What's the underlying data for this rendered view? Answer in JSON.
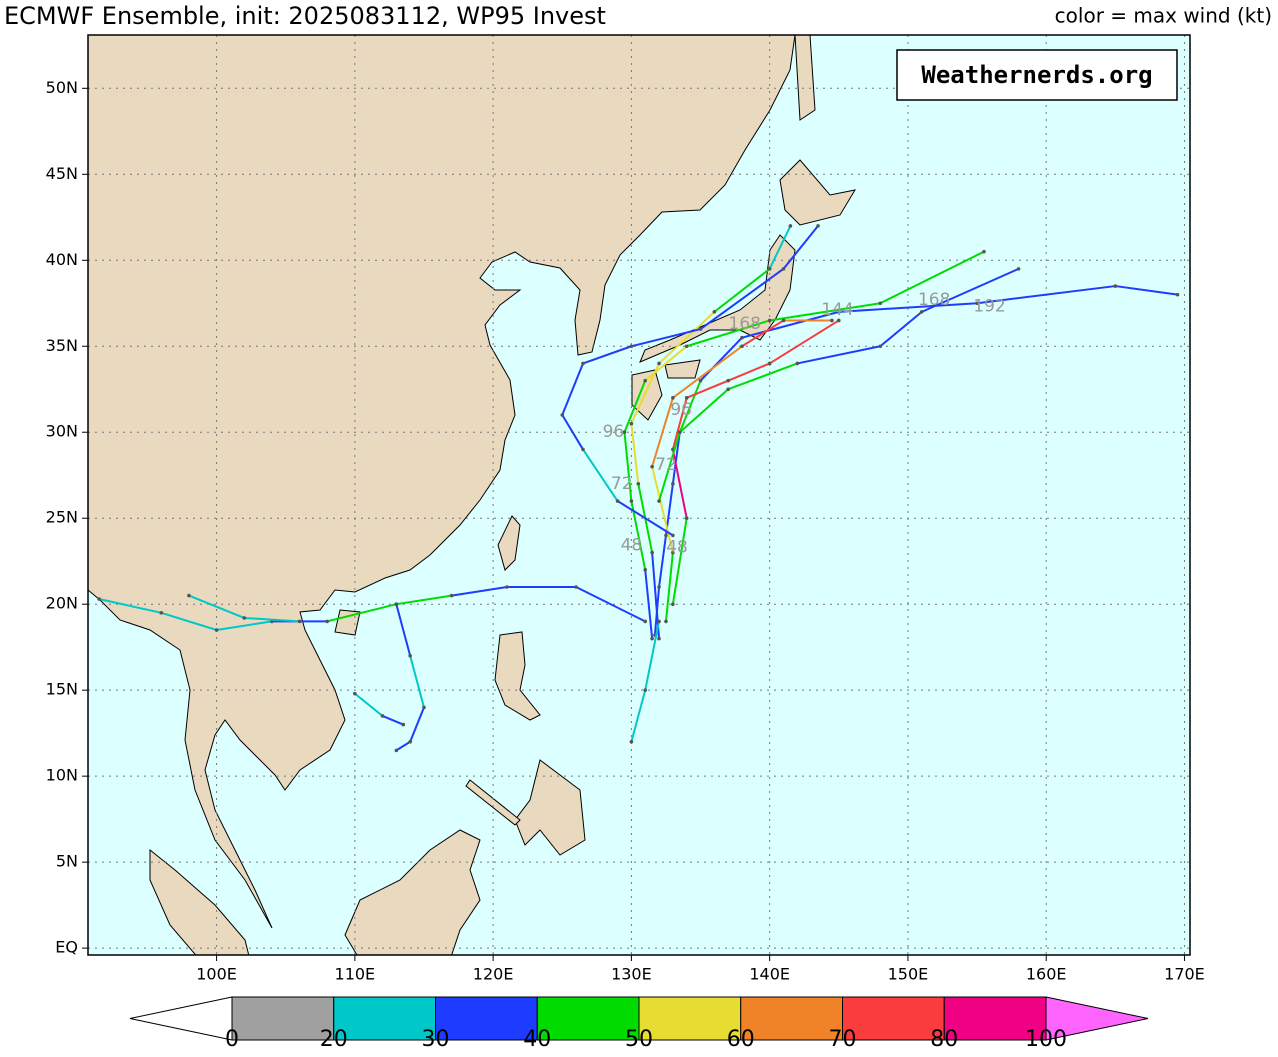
{
  "header": {
    "title": "ECMWF Ensemble, init: 2025083112, WP95 Invest",
    "legend_note": "color = max wind (kt)",
    "watermark": "Weathernerds.org"
  },
  "map": {
    "lon_range": [
      90.7,
      170.4
    ],
    "lat_range": [
      -0.4,
      53.1
    ],
    "lon_ticks": [
      {
        "value": 100,
        "label": "100E"
      },
      {
        "value": 110,
        "label": "110E"
      },
      {
        "value": 120,
        "label": "120E"
      },
      {
        "value": 130,
        "label": "130E"
      },
      {
        "value": 140,
        "label": "140E"
      },
      {
        "value": 150,
        "label": "150E"
      },
      {
        "value": 160,
        "label": "160E"
      },
      {
        "value": 170,
        "label": "170E"
      }
    ],
    "lat_ticks": [
      {
        "value": 0,
        "label": "EQ"
      },
      {
        "value": 5,
        "label": "5N"
      },
      {
        "value": 10,
        "label": "10N"
      },
      {
        "value": 15,
        "label": "15N"
      },
      {
        "value": 20,
        "label": "20N"
      },
      {
        "value": 25,
        "label": "25N"
      },
      {
        "value": 30,
        "label": "30N"
      },
      {
        "value": 35,
        "label": "35N"
      },
      {
        "value": 40,
        "label": "40N"
      },
      {
        "value": 45,
        "label": "45N"
      },
      {
        "value": 50,
        "label": "50N"
      }
    ],
    "tracks": [
      {
        "points": [
          [
            131.7,
            18.2,
            25
          ],
          [
            132,
            21,
            30
          ],
          [
            132.5,
            24,
            30
          ],
          [
            133,
            27,
            35
          ],
          [
            133.5,
            30,
            35
          ],
          [
            135,
            33,
            40
          ],
          [
            138,
            35.5,
            35
          ],
          [
            145,
            37,
            35
          ],
          [
            155,
            37.5,
            35
          ],
          [
            165,
            38.5,
            35
          ],
          [
            169.5,
            38,
            35
          ]
        ]
      },
      {
        "points": [
          [
            131.5,
            18,
            25
          ],
          [
            131,
            22,
            30
          ],
          [
            130,
            26,
            40
          ],
          [
            129.5,
            30,
            45
          ],
          [
            131,
            33,
            45
          ],
          [
            134,
            35,
            50
          ],
          [
            140,
            36.5,
            45
          ],
          [
            148,
            37.5,
            45
          ],
          [
            155.5,
            40.5,
            40
          ]
        ]
      },
      {
        "points": [
          [
            132,
            18,
            25
          ],
          [
            131.5,
            23,
            30
          ],
          [
            130.5,
            27,
            45
          ],
          [
            130,
            30.5,
            50
          ],
          [
            132,
            34,
            50
          ],
          [
            136,
            37,
            55
          ],
          [
            140,
            39.5,
            45
          ],
          [
            141.5,
            42,
            25
          ]
        ]
      },
      {
        "points": [
          [
            132.5,
            19,
            25
          ],
          [
            133,
            23,
            40
          ],
          [
            131.5,
            28,
            55
          ],
          [
            133,
            32,
            60
          ],
          [
            138,
            35,
            65
          ],
          [
            141,
            36.5,
            70
          ],
          [
            144.5,
            36.5,
            65
          ]
        ]
      },
      {
        "points": [
          [
            133,
            20,
            30
          ],
          [
            134,
            25,
            40
          ],
          [
            133,
            29,
            80
          ],
          [
            134,
            32,
            75
          ],
          [
            137,
            33,
            70
          ],
          [
            140,
            34,
            70
          ],
          [
            145,
            36.5,
            70
          ]
        ]
      },
      {
        "points": [
          [
            131,
            19,
            25
          ],
          [
            126,
            21,
            30
          ],
          [
            121,
            21,
            30
          ],
          [
            117,
            20.5,
            30
          ],
          [
            113,
            20,
            40
          ],
          [
            108,
            19,
            40
          ],
          [
            104,
            19,
            30
          ],
          [
            100,
            18.5,
            25
          ],
          [
            96,
            19.5,
            25
          ],
          [
            91.5,
            20.3,
            25
          ]
        ]
      },
      {
        "points": [
          [
            113,
            20,
            30
          ],
          [
            114,
            17,
            30
          ],
          [
            115,
            14,
            25
          ],
          [
            114,
            12,
            30
          ],
          [
            113,
            11.5,
            30
          ]
        ]
      },
      {
        "points": [
          [
            133,
            24,
            30
          ],
          [
            129,
            26,
            30
          ],
          [
            126.5,
            29,
            25
          ],
          [
            125,
            31,
            30
          ],
          [
            126.5,
            34,
            30
          ],
          [
            130,
            35,
            30
          ],
          [
            135,
            36,
            35
          ],
          [
            141,
            39.5,
            30
          ],
          [
            143.5,
            42,
            30
          ]
        ]
      },
      {
        "points": [
          [
            132,
            19,
            25
          ],
          [
            131,
            15,
            25
          ],
          [
            130,
            12,
            25
          ]
        ]
      },
      {
        "points": [
          [
            132,
            26,
            30
          ],
          [
            133.5,
            30,
            45
          ],
          [
            137,
            32.5,
            45
          ],
          [
            142,
            34,
            40
          ],
          [
            148,
            35,
            35
          ],
          [
            151,
            37,
            30
          ],
          [
            158,
            39.5,
            30
          ]
        ]
      },
      {
        "points": [
          [
            110,
            14.8,
            20
          ],
          [
            112,
            13.5,
            20
          ],
          [
            113.5,
            13,
            30
          ]
        ]
      },
      {
        "points": [
          [
            98,
            20.5,
            20
          ],
          [
            102,
            19.2,
            20
          ],
          [
            106,
            19,
            20
          ]
        ]
      }
    ],
    "hour_labels": [
      {
        "text": "48",
        "lon": 130.0,
        "lat": 23.4
      },
      {
        "text": "48",
        "lon": 133.3,
        "lat": 23.3
      },
      {
        "text": "72",
        "lon": 129.3,
        "lat": 27.0
      },
      {
        "text": "72",
        "lon": 132.5,
        "lat": 28.1
      },
      {
        "text": "96",
        "lon": 128.7,
        "lat": 30.0
      },
      {
        "text": "96",
        "lon": 133.6,
        "lat": 31.3
      },
      {
        "text": "168",
        "lon": 138.2,
        "lat": 36.3
      },
      {
        "text": "144",
        "lon": 144.9,
        "lat": 37.1
      },
      {
        "text": "168",
        "lon": 151.9,
        "lat": 37.7
      },
      {
        "text": "192",
        "lon": 155.9,
        "lat": 37.3
      }
    ]
  },
  "colorbar": {
    "bounds": [
      0,
      20,
      30,
      40,
      50,
      60,
      70,
      80,
      100
    ],
    "colors": [
      "#a0a0a0",
      "#00c8c8",
      "#1e3cff",
      "#00dc00",
      "#e6dc32",
      "#f08228",
      "#fa3c3c",
      "#f00082"
    ],
    "under_color": "#ffffff",
    "over_color": "#ff64ff"
  }
}
